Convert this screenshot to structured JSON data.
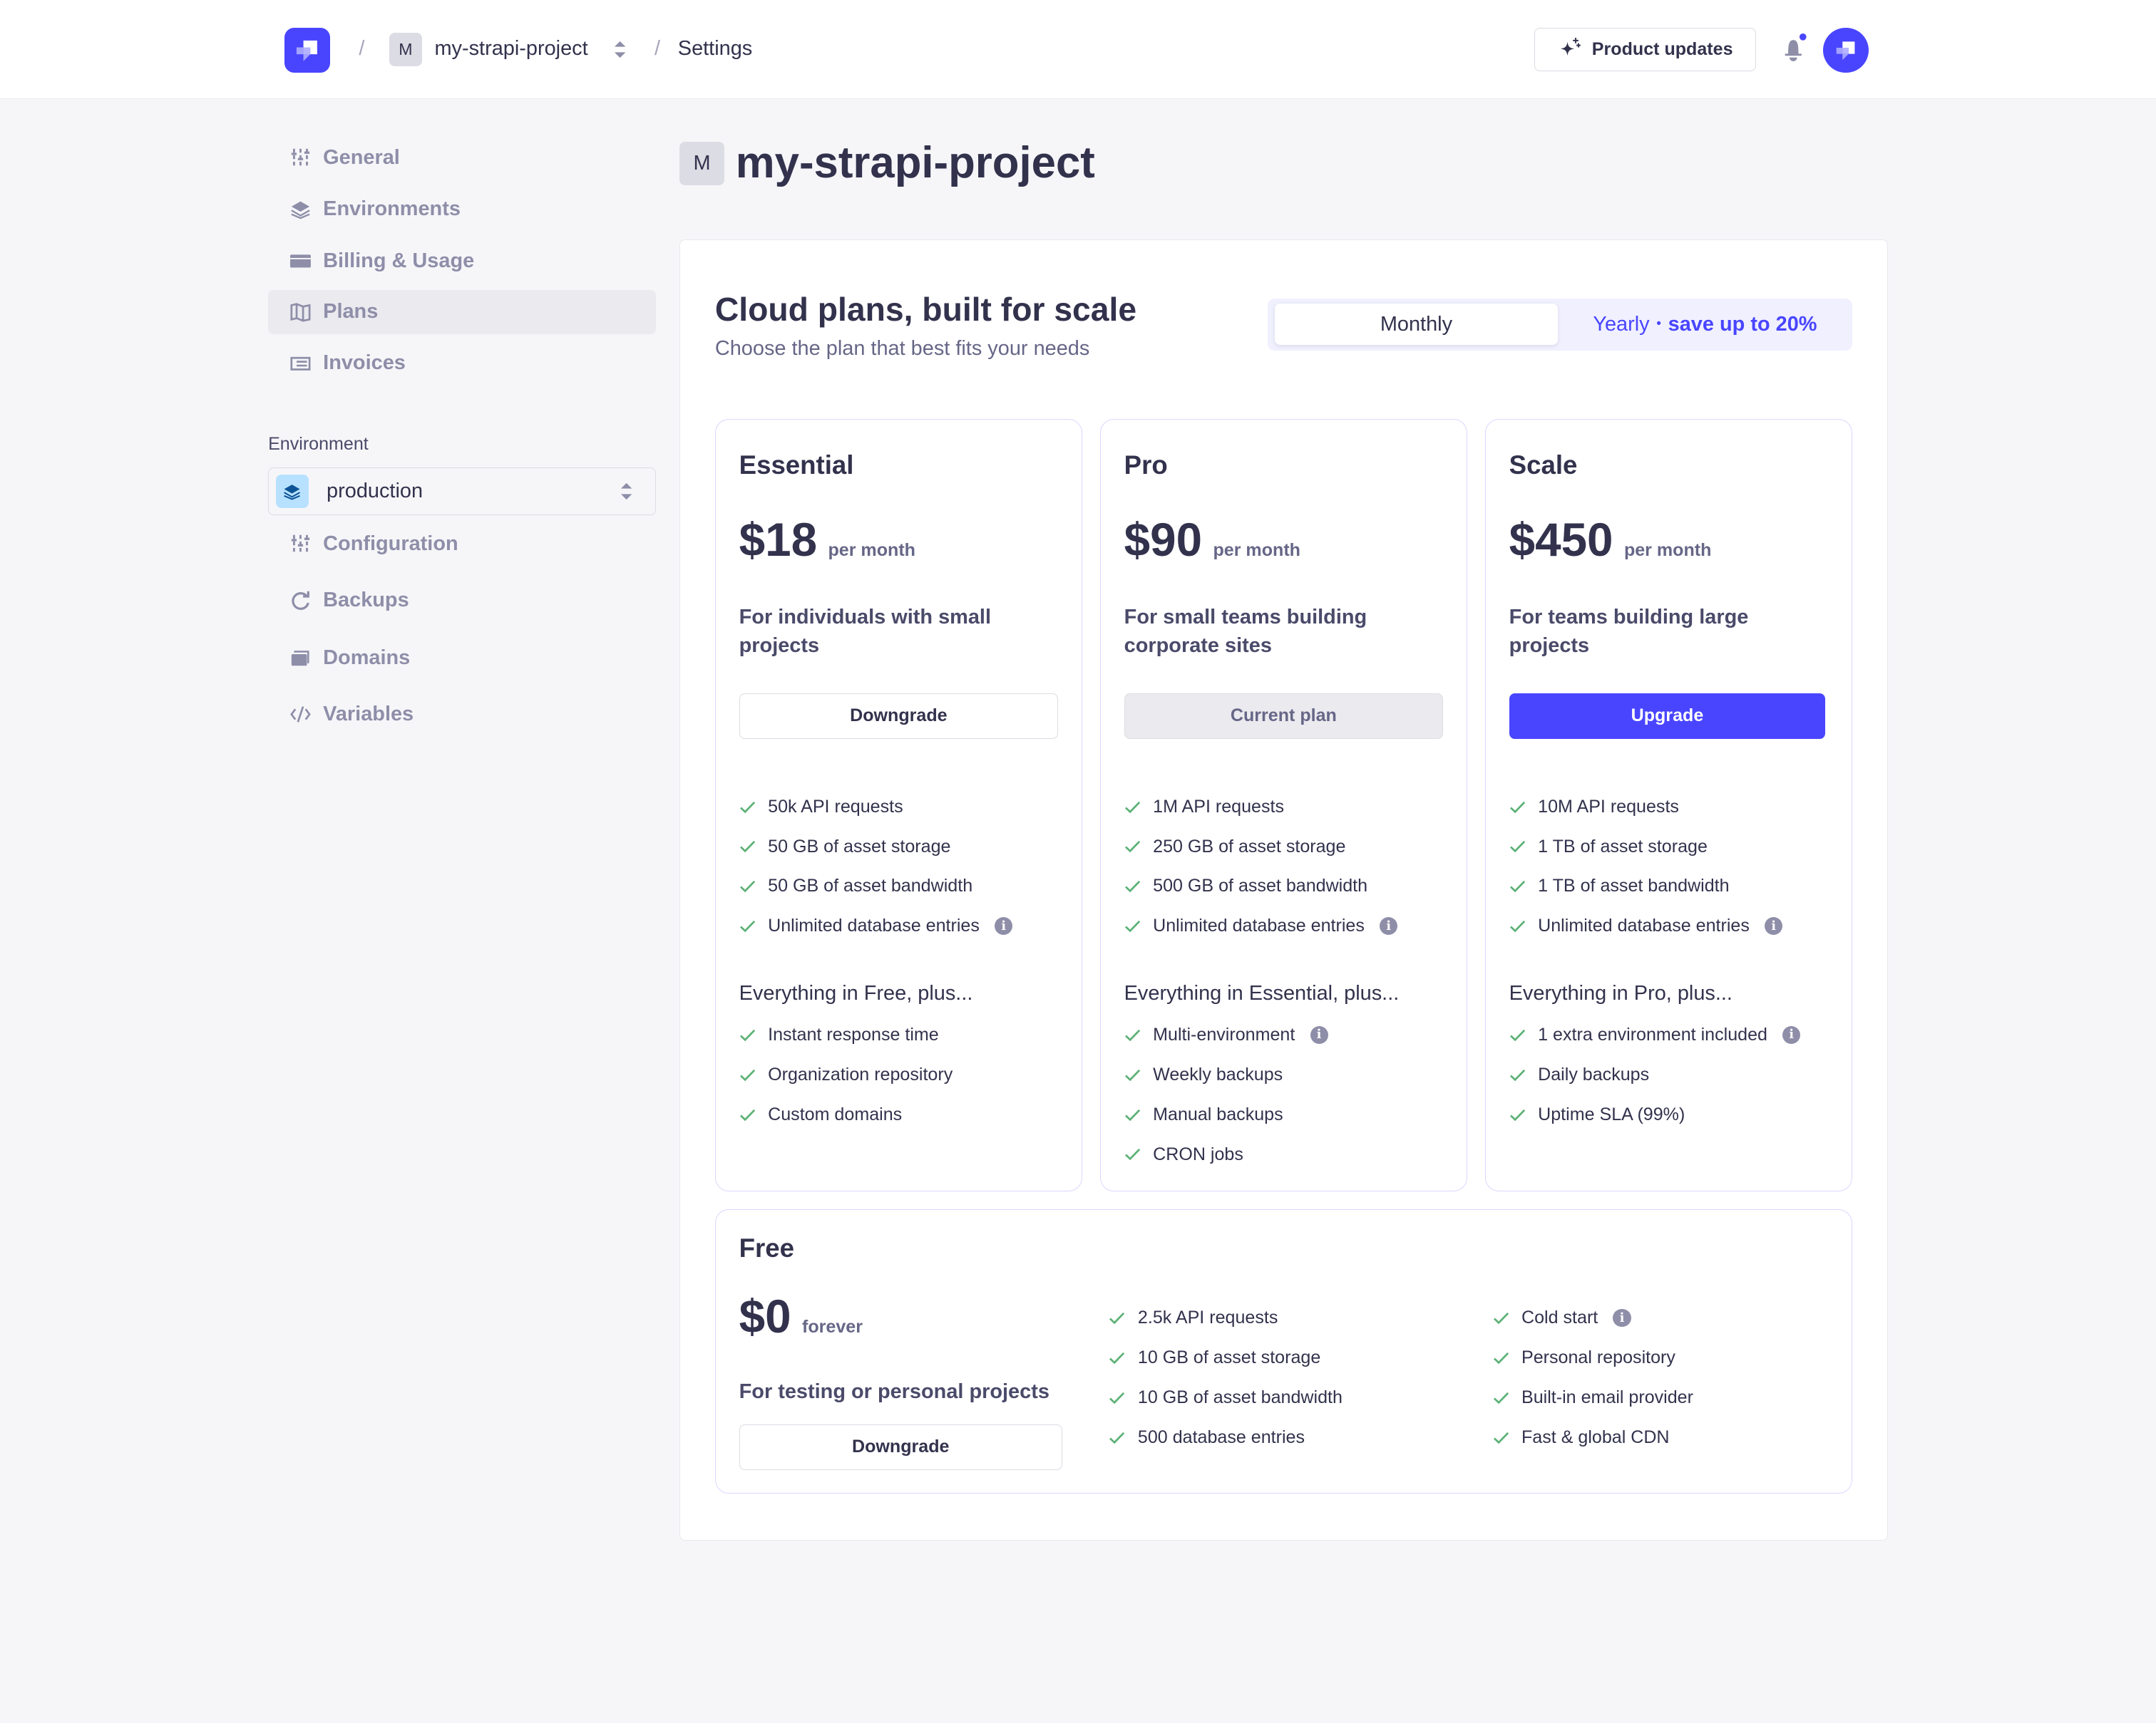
{
  "colors": {
    "accent": "#4945ff",
    "check": "#5cb176",
    "text": "#32324d",
    "muted": "#8e8ea9"
  },
  "header": {
    "project_initial": "M",
    "project_name": "my-strapi-project",
    "separator": "/",
    "section": "Settings",
    "product_updates": "Product updates"
  },
  "sidebar": {
    "items": [
      {
        "label": "General",
        "icon": "sliders-icon"
      },
      {
        "label": "Environments",
        "icon": "layers-icon"
      },
      {
        "label": "Billing & Usage",
        "icon": "credit-card-icon"
      },
      {
        "label": "Plans",
        "icon": "map-icon",
        "active": true
      },
      {
        "label": "Invoices",
        "icon": "receipt-icon"
      }
    ],
    "environment_label": "Environment",
    "environment_value": "production",
    "env_items": [
      {
        "label": "Configuration",
        "icon": "sliders-icon"
      },
      {
        "label": "Backups",
        "icon": "refresh-icon"
      },
      {
        "label": "Domains",
        "icon": "browser-icon"
      },
      {
        "label": "Variables",
        "icon": "code-icon"
      }
    ]
  },
  "main": {
    "project_initial": "M",
    "title": "my-strapi-project",
    "heading": "Cloud plans, built for scale",
    "subheading": "Choose the plan that best fits your needs",
    "billing_toggle": {
      "monthly": "Monthly",
      "yearly": "Yearly",
      "dot": "•",
      "yearly_note": "save up to 20%",
      "selected": "Monthly"
    },
    "plans": [
      {
        "name": "Essential",
        "price": "$18",
        "period": "per month",
        "description": "For individuals with small projects",
        "button": "Downgrade",
        "button_style": "secondary",
        "features": [
          "50k API requests",
          "50 GB of asset storage",
          "50 GB of asset bandwidth",
          "Unlimited database entries"
        ],
        "info_on": [
          3
        ],
        "extras_heading": "Everything in Free, plus...",
        "extras": [
          "Instant response time",
          "Organization repository",
          "Custom domains"
        ],
        "extras_info_on": []
      },
      {
        "name": "Pro",
        "price": "$90",
        "period": "per month",
        "description": "For small teams building corporate sites",
        "button": "Current plan",
        "button_style": "current",
        "features": [
          "1M API requests",
          "250 GB of asset storage",
          "500 GB of asset bandwidth",
          "Unlimited database entries"
        ],
        "info_on": [
          3
        ],
        "extras_heading": "Everything in Essential, plus...",
        "extras": [
          "Multi-environment",
          "Weekly backups",
          "Manual backups",
          "CRON jobs"
        ],
        "extras_info_on": [
          0
        ]
      },
      {
        "name": "Scale",
        "price": "$450",
        "period": "per month",
        "description": "For teams building large projects",
        "button": "Upgrade",
        "button_style": "primary",
        "features": [
          "10M API requests",
          "1 TB of asset storage",
          "1 TB of asset bandwidth",
          "Unlimited database entries"
        ],
        "info_on": [
          3
        ],
        "extras_heading": "Everything in Pro, plus...",
        "extras": [
          "1 extra environment included",
          "Daily backups",
          "Uptime SLA (99%)"
        ],
        "extras_info_on": [
          0
        ]
      }
    ],
    "free_plan": {
      "name": "Free",
      "price": "$0",
      "period": "forever",
      "description": "For testing or personal projects",
      "button": "Downgrade",
      "features_col1": [
        "2.5k API requests",
        "10 GB of asset storage",
        "10 GB of asset bandwidth",
        "500 database entries"
      ],
      "features_col2": [
        "Cold start",
        "Personal repository",
        "Built-in email provider",
        "Fast & global CDN"
      ],
      "col2_info_on": [
        0
      ]
    }
  }
}
